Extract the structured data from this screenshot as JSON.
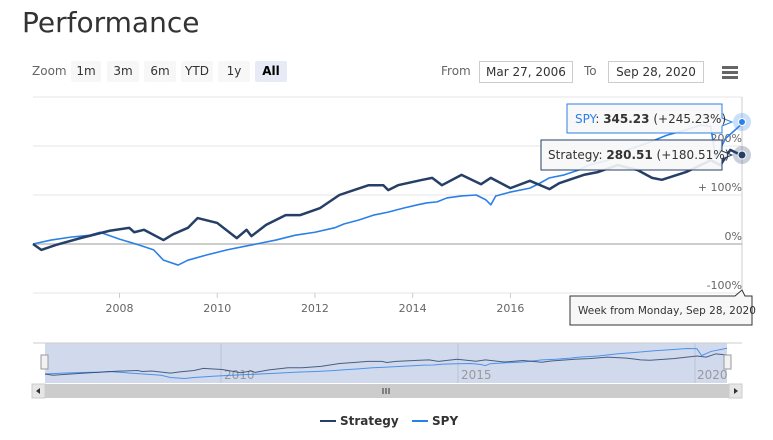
{
  "title": "Performance",
  "range_selector": {
    "zoom_label": "Zoom",
    "buttons": [
      "1m",
      "3m",
      "6m",
      "YTD",
      "1y",
      "All"
    ],
    "selected": "All",
    "from_label": "From",
    "from_value": "Mar 27, 2006",
    "to_label": "To",
    "to_value": "Sep 28, 2020"
  },
  "menu_icon": "hamburger-menu-icon",
  "tooltip": {
    "spy": {
      "label": "SPY",
      "value": "345.23",
      "change": "(+245.23%)"
    },
    "strategy": {
      "label": "Strategy",
      "value": "280.51",
      "change": "(+180.51%)"
    },
    "date": "Week from Monday, Sep 28, 2020"
  },
  "navigator": {
    "tick_labels": [
      "2010",
      "2015",
      "2020"
    ]
  },
  "chart_data": {
    "type": "line",
    "xlabel": "",
    "ylabel": "",
    "xlim": [
      2006.23,
      2020.74
    ],
    "ylim": [
      -100,
      300
    ],
    "x_tick_labels": [
      "2008",
      "2010",
      "2012",
      "2014",
      "2016"
    ],
    "y_tick_labels": [
      "-100%",
      "0%",
      "+ 100%",
      "200%"
    ],
    "y_ticks": [
      -100,
      0,
      100,
      200
    ],
    "legend": "bottom",
    "grid": true,
    "series": [
      {
        "name": "Strategy",
        "color": "#263f66",
        "points": [
          [
            2006.23,
            0
          ],
          [
            2006.4,
            -12
          ],
          [
            2006.7,
            -2
          ],
          [
            2007.2,
            12
          ],
          [
            2007.8,
            27
          ],
          [
            2008.2,
            33
          ],
          [
            2008.3,
            24
          ],
          [
            2008.5,
            29
          ],
          [
            2008.9,
            8
          ],
          [
            2009.1,
            20
          ],
          [
            2009.4,
            33
          ],
          [
            2009.6,
            53
          ],
          [
            2010.0,
            43
          ],
          [
            2010.4,
            12
          ],
          [
            2010.6,
            29
          ],
          [
            2010.7,
            16
          ],
          [
            2011.0,
            39
          ],
          [
            2011.4,
            59
          ],
          [
            2011.7,
            59
          ],
          [
            2012.1,
            73
          ],
          [
            2012.5,
            100
          ],
          [
            2012.8,
            110
          ],
          [
            2013.1,
            120
          ],
          [
            2013.4,
            120
          ],
          [
            2013.5,
            110
          ],
          [
            2013.7,
            120
          ],
          [
            2014.2,
            131
          ],
          [
            2014.4,
            135
          ],
          [
            2014.6,
            120
          ],
          [
            2015.0,
            141
          ],
          [
            2015.4,
            122
          ],
          [
            2015.6,
            135
          ],
          [
            2016.0,
            114
          ],
          [
            2016.4,
            129
          ],
          [
            2016.8,
            112
          ],
          [
            2017.0,
            124
          ],
          [
            2017.5,
            141
          ],
          [
            2017.8,
            147
          ],
          [
            2018.2,
            161
          ],
          [
            2018.6,
            151
          ],
          [
            2018.9,
            135
          ],
          [
            2019.1,
            131
          ],
          [
            2019.6,
            147
          ],
          [
            2020.1,
            171
          ],
          [
            2020.3,
            161
          ],
          [
            2020.5,
            192
          ],
          [
            2020.74,
            180.51
          ]
        ]
      },
      {
        "name": "SPY",
        "color": "#2b80e8",
        "points": [
          [
            2006.23,
            0
          ],
          [
            2006.6,
            8
          ],
          [
            2007.0,
            14
          ],
          [
            2007.4,
            18
          ],
          [
            2007.6,
            24
          ],
          [
            2008.0,
            10
          ],
          [
            2008.4,
            -2
          ],
          [
            2008.7,
            -12
          ],
          [
            2008.9,
            -33
          ],
          [
            2009.2,
            -43
          ],
          [
            2009.4,
            -33
          ],
          [
            2009.8,
            -22
          ],
          [
            2010.2,
            -12
          ],
          [
            2010.6,
            -4
          ],
          [
            2010.8,
            0
          ],
          [
            2011.2,
            8
          ],
          [
            2011.6,
            18
          ],
          [
            2012.0,
            24
          ],
          [
            2012.4,
            33
          ],
          [
            2012.6,
            41
          ],
          [
            2012.9,
            49
          ],
          [
            2013.2,
            59
          ],
          [
            2013.5,
            65
          ],
          [
            2013.8,
            73
          ],
          [
            2014.1,
            80
          ],
          [
            2014.3,
            84
          ],
          [
            2014.5,
            86
          ],
          [
            2014.7,
            94
          ],
          [
            2015.0,
            98
          ],
          [
            2015.3,
            100
          ],
          [
            2015.5,
            90
          ],
          [
            2015.6,
            80
          ],
          [
            2015.7,
            98
          ],
          [
            2016.0,
            106
          ],
          [
            2016.4,
            114
          ],
          [
            2016.6,
            124
          ],
          [
            2016.8,
            135
          ],
          [
            2017.1,
            141
          ],
          [
            2017.4,
            151
          ],
          [
            2017.6,
            161
          ],
          [
            2018.0,
            171
          ],
          [
            2018.4,
            192
          ],
          [
            2018.8,
            206
          ],
          [
            2019.2,
            222
          ],
          [
            2019.6,
            233
          ],
          [
            2019.9,
            243
          ],
          [
            2020.1,
            240
          ],
          [
            2020.2,
            175
          ],
          [
            2020.4,
            215
          ],
          [
            2020.74,
            245.23
          ]
        ]
      }
    ]
  }
}
